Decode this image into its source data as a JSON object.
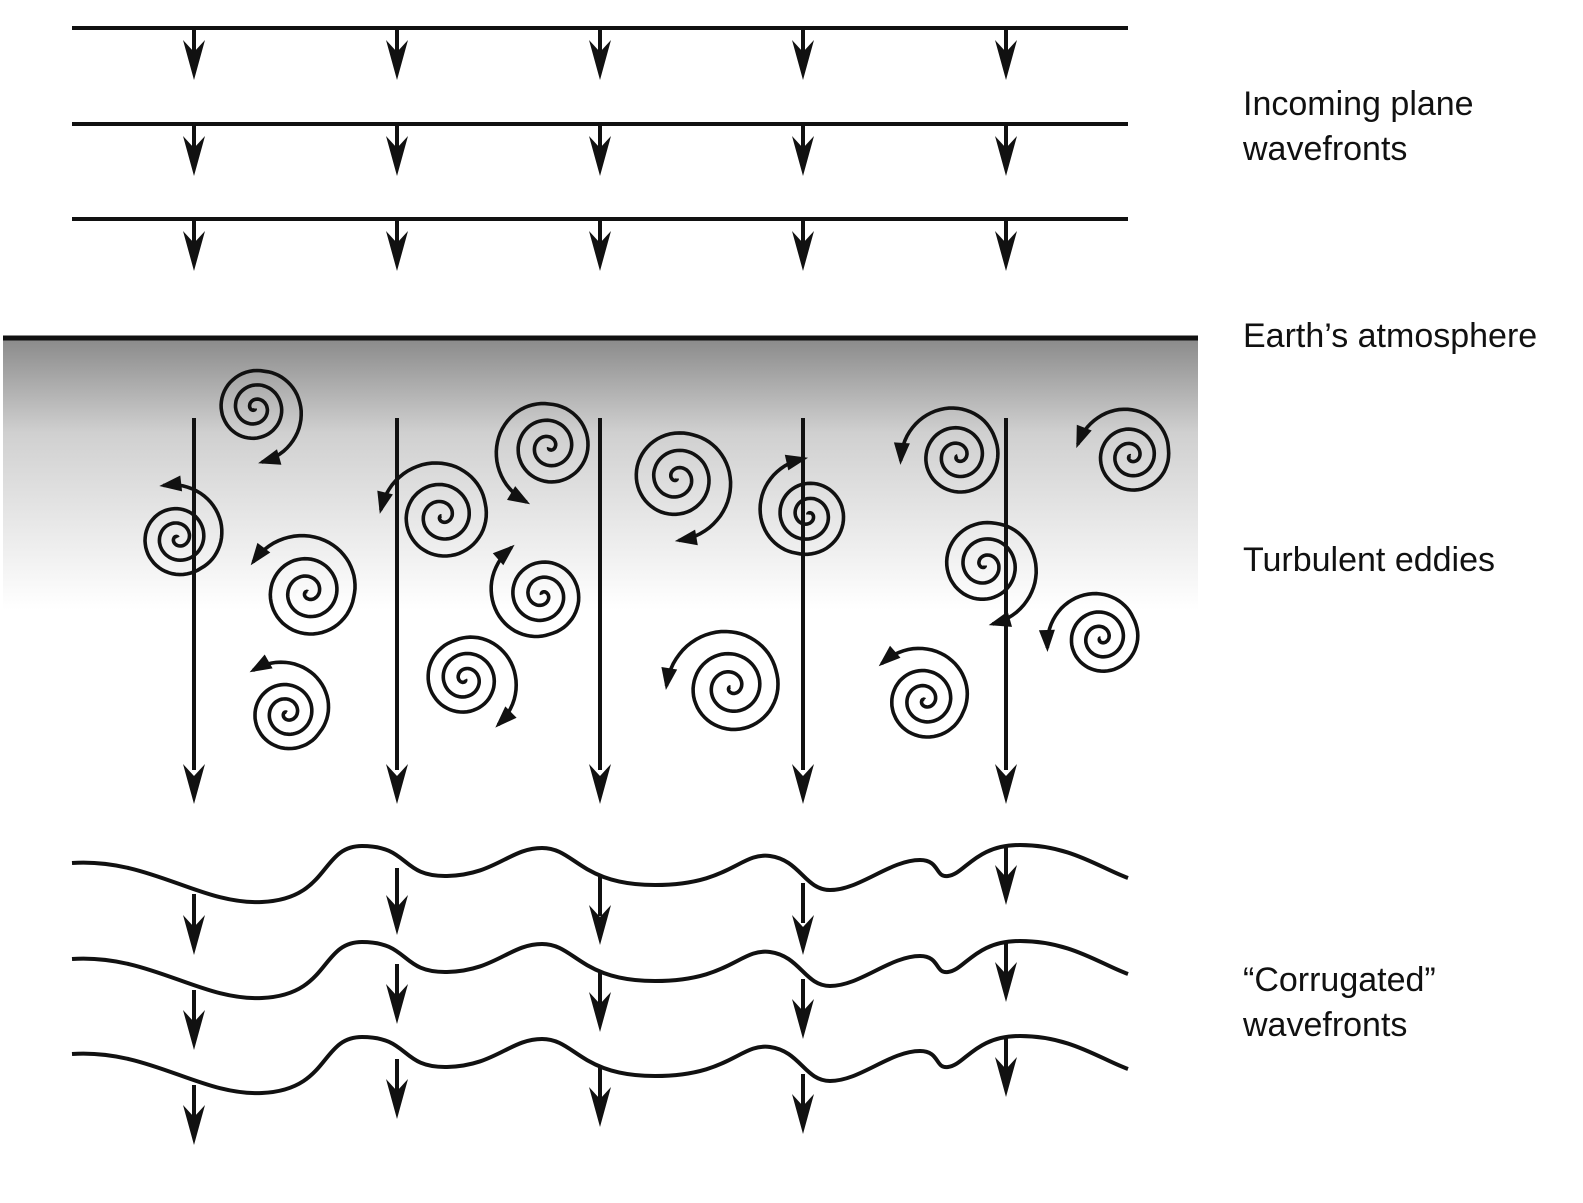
{
  "labels": {
    "incoming": [
      "Incoming plane",
      "wavefronts"
    ],
    "atmosphere": "Earth’s atmosphere",
    "eddies": "Turbulent eddies",
    "corrugated": [
      "“Corrugated”",
      "wavefronts"
    ]
  },
  "colors": {
    "ink": "#111111",
    "atmosphere_top": "#8a8a8a",
    "atmosphere_bottom": "#ffffff"
  },
  "icons": {
    "eddy": "spiral-eddy-icon",
    "ray": "down-arrow-icon"
  }
}
